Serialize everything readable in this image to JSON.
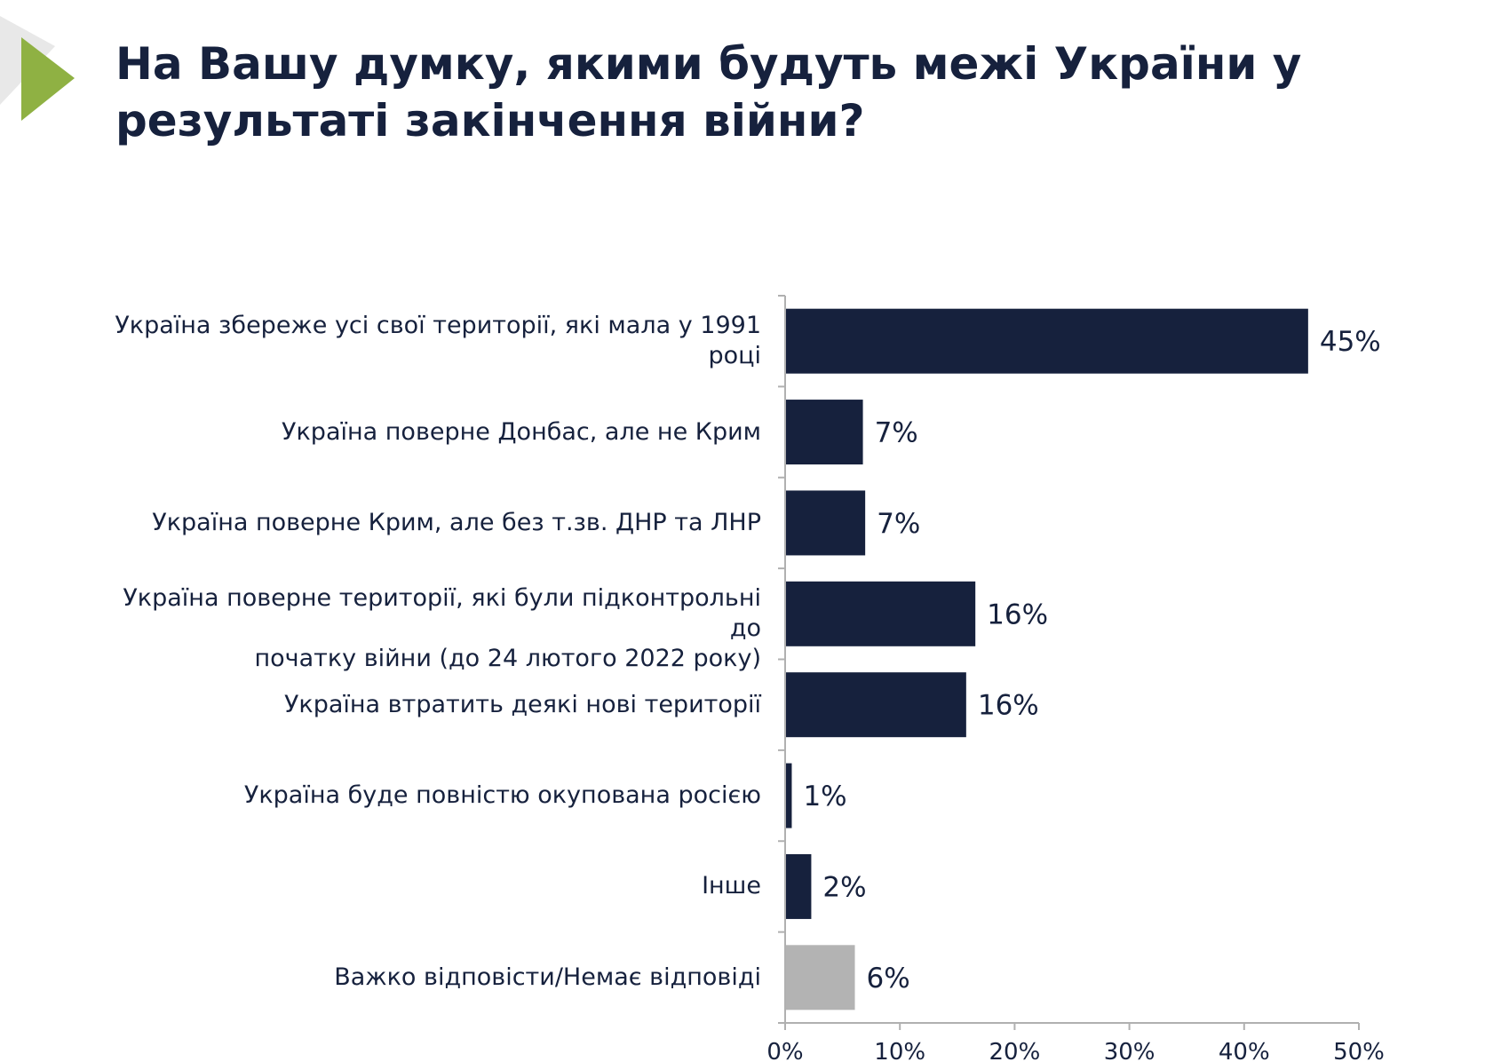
{
  "title": {
    "line1": "На Вашу думку, якими будуть межі України у",
    "line2": "результаті закінчення війни?"
  },
  "colors": {
    "bar": "#16213d",
    "bar_no_answer": "#b3b3b3",
    "text": "#16213d",
    "axis": "#b0b0b0",
    "logo_green": "#8fb143",
    "logo_shadow": "#e8e8e8"
  },
  "chart_data": {
    "type": "bar",
    "orientation": "horizontal",
    "categories": [
      [
        "Україна збереже усі свої території, які мала у 1991",
        "році"
      ],
      [
        "Україна поверне Донбас, але не Крим"
      ],
      [
        "Україна поверне Крим, але без т.зв. ДНР та ЛНР"
      ],
      [
        "Україна поверне території, які були підконтрольні до",
        "початку війни (до 24 лютого 2022 року)"
      ],
      [
        "Україна втратить деякі нові території"
      ],
      [
        "Україна буде повністю окупована росією"
      ],
      [
        "Інше"
      ],
      [
        "Важко відповісти/Немає відповіді"
      ]
    ],
    "values": [
      45.5,
      6.7,
      6.9,
      16.5,
      15.7,
      0.5,
      2.2,
      6.0
    ],
    "value_labels": [
      "45%",
      "7%",
      "7%",
      "16%",
      "16%",
      "1%",
      "2%",
      "6%"
    ],
    "highlight_last": true,
    "xlim": [
      0,
      50
    ],
    "xticks": [
      "0%",
      "10%",
      "20%",
      "30%",
      "40%",
      "50%"
    ],
    "xtick_values": [
      0,
      10,
      20,
      30,
      40,
      50
    ],
    "grid": false,
    "legend": "none"
  }
}
